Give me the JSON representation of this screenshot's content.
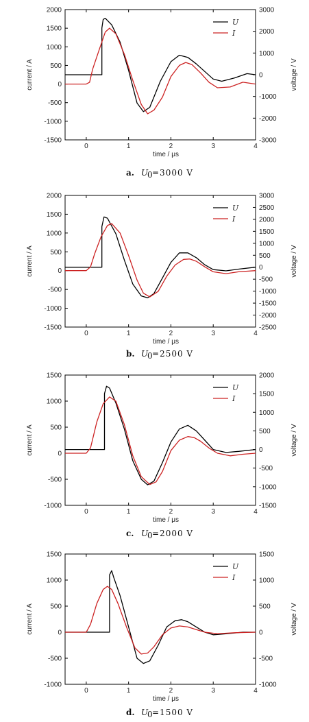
{
  "colors": {
    "U": "#000000",
    "I": "#cc2222"
  },
  "chart_data": [
    {
      "type": "line",
      "caption": {
        "letter": "a.",
        "symbol": "U",
        "subscript": "0",
        "rest": "=3000 V"
      },
      "xlabel": "time / μs",
      "ylabel_left": "current / A",
      "ylabel_right": "voltage / V",
      "xlim": [
        -0.5,
        4
      ],
      "xticks": [
        0,
        1,
        2,
        3,
        4
      ],
      "ylim_left": [
        -1500,
        2000
      ],
      "yticks_left": [
        -1500,
        -1000,
        -500,
        0,
        500,
        1000,
        1500,
        2000
      ],
      "ylim_right": [
        -3000,
        3000
      ],
      "yticks_right": [
        -3000,
        -2000,
        -1000,
        0,
        1000,
        2000,
        3000
      ],
      "legend": [
        "U",
        "I"
      ],
      "legend_position": "top-right",
      "series": [
        {
          "name": "U",
          "axis": "right",
          "x": [
            -0.5,
            0.37,
            0.37,
            0.4,
            0.45,
            0.6,
            0.8,
            1.0,
            1.2,
            1.35,
            1.5,
            1.75,
            2.0,
            2.2,
            2.4,
            2.6,
            2.8,
            3.0,
            3.2,
            3.5,
            3.8,
            4.0
          ],
          "y": [
            0,
            0,
            2150,
            2550,
            2600,
            2300,
            1500,
            200,
            -1300,
            -1700,
            -1500,
            -300,
            600,
            900,
            800,
            500,
            150,
            -200,
            -300,
            -150,
            50,
            0
          ]
        },
        {
          "name": "I",
          "axis": "left",
          "x": [
            -0.5,
            0.0,
            0.08,
            0.15,
            0.3,
            0.45,
            0.55,
            0.7,
            0.9,
            1.1,
            1.3,
            1.45,
            1.6,
            1.8,
            2.0,
            2.2,
            2.35,
            2.5,
            2.7,
            2.9,
            3.1,
            3.4,
            3.7,
            4.0
          ],
          "y": [
            0,
            0,
            50,
            400,
            900,
            1400,
            1500,
            1350,
            800,
            100,
            -550,
            -800,
            -700,
            -350,
            200,
            500,
            580,
            520,
            300,
            50,
            -100,
            -80,
            50,
            0
          ]
        }
      ]
    },
    {
      "type": "line",
      "caption": {
        "letter": "b.",
        "symbol": "U",
        "subscript": "0",
        "rest": "=2500 V"
      },
      "xlabel": "time / μs",
      "ylabel_left": "current / A",
      "ylabel_right": "voltage / V",
      "xlim": [
        -0.5,
        4
      ],
      "xticks": [
        0,
        1,
        2,
        3,
        4
      ],
      "ylim_left": [
        -1500,
        2000
      ],
      "yticks_left": [
        -1500,
        -1000,
        -500,
        0,
        500,
        1000,
        1500,
        2000
      ],
      "ylim_right": [
        -2500,
        3000
      ],
      "yticks_right": [
        -2500,
        -2000,
        -1500,
        -1000,
        -500,
        0,
        500,
        1000,
        1500,
        2000,
        2500,
        3000
      ],
      "legend": [
        "U",
        "I"
      ],
      "legend_position": "top-right",
      "series": [
        {
          "name": "U",
          "axis": "right",
          "x": [
            -0.5,
            0.37,
            0.37,
            0.42,
            0.5,
            0.7,
            0.9,
            1.1,
            1.3,
            1.45,
            1.6,
            1.8,
            2.0,
            2.2,
            2.4,
            2.6,
            2.8,
            3.0,
            3.3,
            3.6,
            4.0
          ],
          "y": [
            0,
            0,
            1700,
            2100,
            2050,
            1400,
            300,
            -700,
            -1200,
            -1280,
            -1100,
            -450,
            200,
            600,
            600,
            400,
            100,
            -100,
            -150,
            -80,
            0
          ]
        },
        {
          "name": "I",
          "axis": "left",
          "x": [
            -0.5,
            0.0,
            0.1,
            0.2,
            0.35,
            0.5,
            0.6,
            0.8,
            1.0,
            1.2,
            1.35,
            1.5,
            1.7,
            1.9,
            2.1,
            2.3,
            2.45,
            2.6,
            2.8,
            3.0,
            3.3,
            3.6,
            4.0
          ],
          "y": [
            0,
            0,
            100,
            450,
            900,
            1200,
            1250,
            1000,
            400,
            -250,
            -600,
            -700,
            -550,
            -150,
            150,
            300,
            310,
            250,
            100,
            -30,
            -80,
            -30,
            0
          ]
        }
      ]
    },
    {
      "type": "line",
      "caption": {
        "letter": "c.",
        "symbol": "U",
        "subscript": "0",
        "rest": "=2000 V"
      },
      "xlabel": "time / μs",
      "ylabel_left": "current / A",
      "ylabel_right": "voltage / V",
      "xlim": [
        -0.5,
        4
      ],
      "xticks": [
        0,
        1,
        2,
        3,
        4
      ],
      "ylim_left": [
        -1000,
        1500
      ],
      "yticks_left": [
        -1000,
        -500,
        0,
        500,
        1000,
        1500
      ],
      "ylim_right": [
        -1500,
        2000
      ],
      "yticks_right": [
        -1500,
        -1000,
        -500,
        0,
        500,
        1000,
        1500,
        2000
      ],
      "legend": [
        "U",
        "I"
      ],
      "legend_position": "top-right",
      "series": [
        {
          "name": "U",
          "axis": "right",
          "x": [
            -0.5,
            0.43,
            0.43,
            0.48,
            0.55,
            0.7,
            0.9,
            1.1,
            1.3,
            1.45,
            1.6,
            1.8,
            2.0,
            2.2,
            2.4,
            2.6,
            2.8,
            3.0,
            3.3,
            3.6,
            4.0
          ],
          "y": [
            0,
            0,
            1500,
            1700,
            1650,
            1250,
            550,
            -300,
            -800,
            -950,
            -850,
            -350,
            200,
            550,
            650,
            500,
            250,
            0,
            -80,
            -50,
            0
          ]
        },
        {
          "name": "I",
          "axis": "left",
          "x": [
            -0.5,
            0.0,
            0.1,
            0.25,
            0.4,
            0.55,
            0.7,
            0.9,
            1.1,
            1.3,
            1.5,
            1.65,
            1.8,
            2.0,
            2.2,
            2.4,
            2.55,
            2.7,
            2.9,
            3.1,
            3.4,
            3.7,
            4.0
          ],
          "y": [
            0,
            0,
            100,
            600,
            950,
            1080,
            1000,
            550,
            -50,
            -450,
            -600,
            -550,
            -350,
            50,
            250,
            320,
            300,
            230,
            100,
            0,
            -50,
            -20,
            0
          ]
        }
      ]
    },
    {
      "type": "line",
      "caption": {
        "letter": "d.",
        "symbol": "U",
        "subscript": "0",
        "rest": "=1500 V"
      },
      "xlabel": "time / μs",
      "ylabel_left": "current / A",
      "ylabel_right": "voltage / V",
      "xlim": [
        -0.5,
        4
      ],
      "xticks": [
        0,
        1,
        2,
        3,
        4
      ],
      "ylim_left": [
        -1000,
        1500
      ],
      "yticks_left": [
        -1000,
        -500,
        0,
        500,
        1000,
        1500
      ],
      "ylim_right": [
        -1000,
        1500
      ],
      "yticks_right": [
        -1000,
        -500,
        0,
        500,
        1000,
        1500
      ],
      "legend": [
        "U",
        "I"
      ],
      "legend_position": "top-right",
      "series": [
        {
          "name": "U",
          "axis": "right",
          "x": [
            -0.5,
            0.55,
            0.55,
            0.6,
            0.65,
            0.8,
            1.0,
            1.2,
            1.35,
            1.5,
            1.7,
            1.9,
            2.1,
            2.25,
            2.4,
            2.6,
            2.8,
            3.0,
            3.3,
            3.7,
            4.0
          ],
          "y": [
            0,
            0,
            1100,
            1180,
            1050,
            700,
            100,
            -500,
            -600,
            -550,
            -250,
            100,
            220,
            240,
            200,
            100,
            0,
            -50,
            -30,
            0,
            0
          ]
        },
        {
          "name": "I",
          "axis": "left",
          "x": [
            -0.5,
            0.0,
            0.1,
            0.25,
            0.4,
            0.5,
            0.6,
            0.75,
            0.95,
            1.15,
            1.3,
            1.45,
            1.6,
            1.8,
            2.0,
            2.2,
            2.4,
            2.6,
            2.8,
            3.1,
            3.5,
            4.0
          ],
          "y": [
            0,
            0,
            150,
            550,
            820,
            880,
            820,
            550,
            100,
            -300,
            -420,
            -400,
            -280,
            -50,
            80,
            120,
            100,
            50,
            0,
            -30,
            -10,
            0
          ]
        }
      ]
    }
  ]
}
